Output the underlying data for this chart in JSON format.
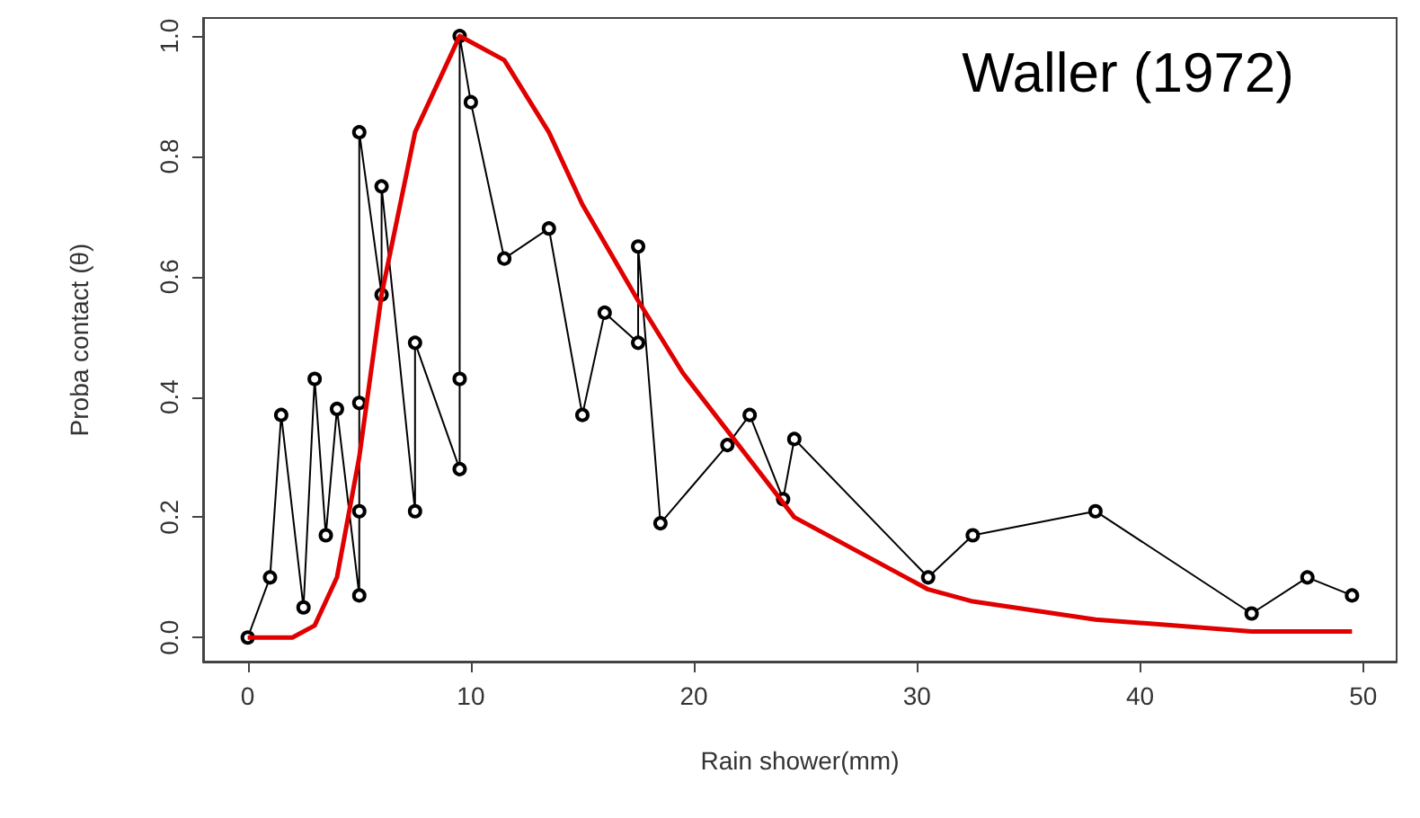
{
  "chart_data": {
    "type": "line",
    "xlabel": "Rain shower(mm)",
    "ylabel": "Proba contact (θ)",
    "annotations": [
      "Waller (1972)"
    ],
    "xlim": [
      -2,
      51.5
    ],
    "xticks": [
      0,
      10,
      20,
      30,
      40,
      50
    ],
    "ylim": [
      -0.04,
      1.03
    ],
    "yticks": [
      {
        "value": 0,
        "label": "0.0"
      },
      {
        "value": 0.2,
        "label": "0.2"
      },
      {
        "value": 0.4,
        "label": "0.4"
      },
      {
        "value": 0.6,
        "label": "0.6"
      },
      {
        "value": 0.8,
        "label": "0.8"
      },
      {
        "value": 1,
        "label": "1.0"
      }
    ],
    "grid": false,
    "series": [
      {
        "color": "#000000",
        "marker": "circle",
        "line_style": "solid",
        "x": [
          0,
          1,
          1.5,
          2.5,
          3,
          3.5,
          4,
          5,
          5,
          5,
          5,
          6,
          6,
          7.5,
          7.5,
          9.5,
          9.5,
          9.5,
          10,
          11.5,
          13.5,
          15,
          16,
          17.5,
          17.5,
          18.5,
          21.5,
          22.5,
          24,
          24.5,
          30.5,
          32.5,
          38,
          45,
          47.5,
          49.5
        ],
        "values": [
          0,
          0.1,
          0.37,
          0.05,
          0.43,
          0.17,
          0.38,
          0.07,
          0.21,
          0.39,
          0.84,
          0.57,
          0.75,
          0.21,
          0.49,
          0.28,
          0.43,
          1,
          0.89,
          0.63,
          0.68,
          0.37,
          0.54,
          0.49,
          0.65,
          0.19,
          0.32,
          0.37,
          0.23,
          0.33,
          0.1,
          0.17,
          0.21,
          0.04,
          0.1,
          0.07
        ]
      },
      {
        "color": "#e00000",
        "marker": "none",
        "line_style": "solid",
        "x": [
          0,
          2,
          3,
          4,
          5,
          6,
          7.5,
          9.5,
          11.5,
          13.5,
          15,
          17.5,
          19.5,
          22,
          24.5,
          30.5,
          32.5,
          38,
          45,
          49.5
        ],
        "values": [
          0,
          0,
          0.02,
          0.1,
          0.3,
          0.57,
          0.84,
          1,
          0.96,
          0.84,
          0.72,
          0.56,
          0.44,
          0.32,
          0.2,
          0.08,
          0.06,
          0.03,
          0.01,
          0.01
        ]
      }
    ]
  }
}
